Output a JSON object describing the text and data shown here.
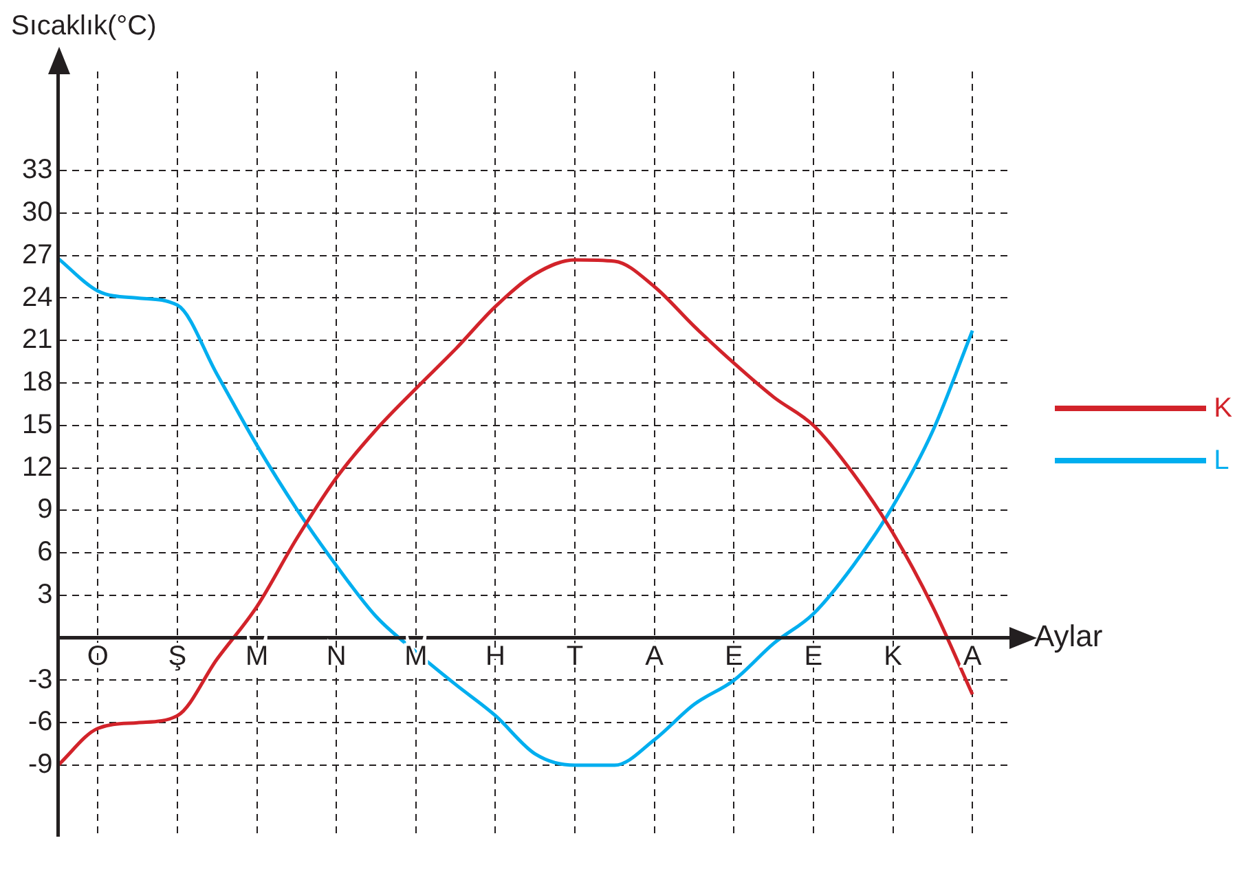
{
  "chart_data": {
    "type": "line",
    "xlabel": "Aylar",
    "ylabel": "Sıcaklık(°C)",
    "categories": [
      null,
      "O",
      null,
      "Ş",
      null,
      "M",
      null,
      "N",
      null,
      "M",
      null,
      "H",
      null,
      "T",
      null,
      "A",
      null,
      "E",
      null,
      "E",
      null,
      "K",
      null,
      "A",
      null
    ],
    "ylim": [
      -14,
      40
    ],
    "yticks": [
      -9,
      -6,
      -3,
      3,
      6,
      9,
      12,
      15,
      18,
      21,
      24,
      27,
      30,
      33
    ],
    "grid": true,
    "legend": "right",
    "marker": "none",
    "line_style": "solid",
    "series": [
      {
        "name": "K",
        "color": "#d2232a",
        "values": [
          -9,
          -6.4,
          -6,
          -5.5,
          -1.5,
          2.2,
          7,
          11.3,
          14.7,
          17.6,
          20.4,
          23.4,
          25.7,
          26.7,
          26.6,
          24.8,
          22,
          19.4,
          17,
          15,
          11.6,
          7.4,
          2.2,
          -4,
          null
        ]
      },
      {
        "name": "L",
        "color": "#00aeef",
        "values": [
          26.8,
          24.5,
          24,
          23.5,
          18.6,
          13.6,
          9.1,
          5.1,
          1.5,
          -1,
          -3.3,
          -5.5,
          -8.2,
          -9,
          -9,
          -7.2,
          -4.7,
          -3,
          -0.4,
          1.7,
          5.1,
          9.3,
          14.6,
          21.7,
          null
        ]
      }
    ]
  }
}
